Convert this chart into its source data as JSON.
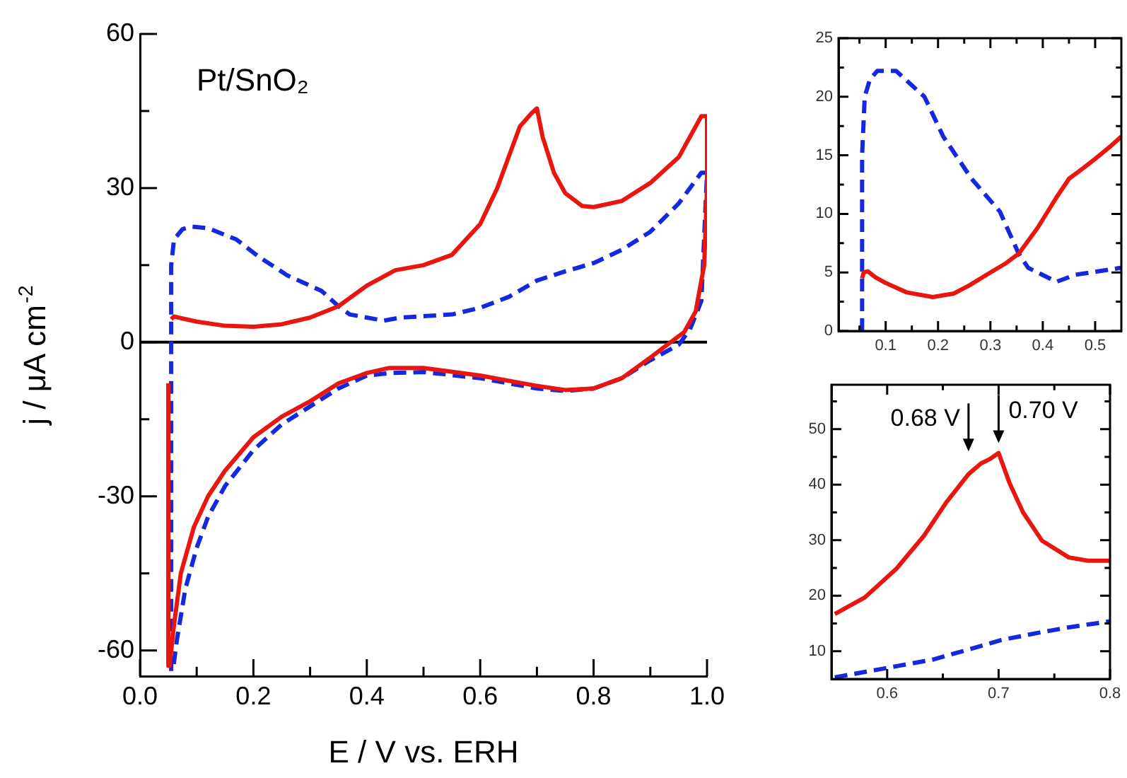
{
  "chart_data": [
    {
      "type": "line",
      "xlabel": "E / V vs. ERH",
      "ylabel": "j / μA cm$^{-2}$",
      "annotations": [
        "Pt/SnO₂"
      ],
      "marker": "none",
      "xlim": [
        0,
        1
      ],
      "xticks": [
        {
          "value": 0,
          "label": "0.0"
        },
        {
          "value": 0.1,
          "label": null
        },
        {
          "value": 0.2,
          "label": "0.2"
        },
        {
          "value": 0.3,
          "label": null
        },
        {
          "value": 0.4,
          "label": "0.4"
        },
        {
          "value": 0.5,
          "label": null
        },
        {
          "value": 0.6,
          "label": "0.6"
        },
        {
          "value": 0.7,
          "label": null
        },
        {
          "value": 0.8,
          "label": "0.8"
        },
        {
          "value": 0.9,
          "label": null
        },
        {
          "value": 1,
          "label": "1.0"
        }
      ],
      "ylim": [
        -65,
        60
      ],
      "yticks": [
        -60,
        {
          "value": -45,
          "label": null
        },
        -30,
        {
          "value": -15,
          "label": null
        },
        0,
        {
          "value": 15,
          "label": null
        },
        30,
        {
          "value": 45,
          "label": null
        },
        60
      ],
      "ref_lines": [
        {
          "axis": "y",
          "value": 0,
          "color": "#000000"
        }
      ],
      "series": [
        {
          "color": "#e8160f",
          "line_style": "solid",
          "x": [
            0.055,
            0.06,
            0.1,
            0.15,
            0.2,
            0.25,
            0.3,
            0.35,
            0.4,
            0.45,
            0.5,
            0.55,
            0.6,
            0.63,
            0.65,
            0.67,
            0.69,
            0.7,
            0.71,
            0.73,
            0.75,
            0.78,
            0.8,
            0.85,
            0.9,
            0.95,
            0.99,
            1.0,
            1.0,
            0.995,
            0.98,
            0.96,
            0.93,
            0.9,
            0.85,
            0.8,
            0.75,
            0.7,
            0.6,
            0.5,
            0.44,
            0.4,
            0.35,
            0.3,
            0.25,
            0.2,
            0.15,
            0.12,
            0.095,
            0.072,
            0.06,
            0.052,
            0.05
          ],
          "values": [
            4.5,
            5,
            4,
            3.2,
            3,
            3.5,
            4.8,
            7,
            11,
            14,
            15,
            17,
            23,
            30,
            36,
            42,
            44.5,
            45.5,
            40,
            33,
            29,
            26.5,
            26.3,
            27.5,
            31,
            36,
            44,
            44,
            30,
            15,
            6,
            2,
            -0.5,
            -3,
            -7,
            -9,
            -9.3,
            -8.5,
            -6.5,
            -5,
            -5,
            -6,
            -8,
            -11.5,
            -14.5,
            -18.5,
            -25,
            -30,
            -36,
            -45,
            -55,
            -63,
            -8
          ]
        },
        {
          "color": "#1428e0",
          "line_style": "dashed",
          "x": [
            0.055,
            0.055,
            0.06,
            0.075,
            0.09,
            0.12,
            0.17,
            0.21,
            0.26,
            0.32,
            0.35,
            0.37,
            0.43,
            0.46,
            0.55,
            0.6,
            0.65,
            0.7,
            0.75,
            0.8,
            0.85,
            0.9,
            0.95,
            0.99,
            1.0,
            0.99,
            0.97,
            0.95,
            0.9,
            0.85,
            0.8,
            0.75,
            0.7,
            0.6,
            0.5,
            0.44,
            0.4,
            0.35,
            0.3,
            0.25,
            0.2,
            0.15,
            0.12,
            0.1,
            0.08,
            0.065,
            0.058
          ],
          "values": [
            -64,
            15,
            20,
            22,
            22.5,
            22.2,
            20,
            16.6,
            13,
            10,
            7,
            5.4,
            4.2,
            4.8,
            5.4,
            6.7,
            8.8,
            12,
            13.8,
            15.4,
            18,
            21.5,
            27,
            33,
            33,
            8,
            2.5,
            -0.5,
            -3.5,
            -7,
            -9,
            -9.5,
            -9,
            -7,
            -5.8,
            -6,
            -6.5,
            -9,
            -12.5,
            -16,
            -21,
            -28,
            -34,
            -40,
            -48,
            -58,
            -64
          ]
        }
      ]
    },
    {
      "type": "line",
      "marker": "none",
      "xlim": [
        0.01,
        0.55
      ],
      "xticks": [
        {
          "value": 0.05,
          "label": null
        },
        0.1,
        {
          "value": 0.15,
          "label": null
        },
        0.2,
        {
          "value": 0.25,
          "label": null
        },
        0.3,
        {
          "value": 0.35,
          "label": null
        },
        0.4,
        {
          "value": 0.45,
          "label": null
        },
        0.5
      ],
      "ylim": [
        0,
        25
      ],
      "yticks": [
        0,
        {
          "value": 2.5,
          "label": null
        },
        5,
        {
          "value": 7.5,
          "label": null
        },
        10,
        {
          "value": 12.5,
          "label": null
        },
        15,
        {
          "value": 17.5,
          "label": null
        },
        20,
        {
          "value": 22.5,
          "label": null
        },
        25
      ],
      "series": [
        {
          "color": "#e8160f",
          "line_style": "solid",
          "x": [
            0.055,
            0.058,
            0.066,
            0.08,
            0.1,
            0.14,
            0.19,
            0.23,
            0.26,
            0.3,
            0.33,
            0.354,
            0.39,
            0.426,
            0.45,
            0.48,
            0.5,
            0.53,
            0.55
          ],
          "values": [
            4.5,
            5,
            5.1,
            4.6,
            4.1,
            3.3,
            2.9,
            3.2,
            3.9,
            5,
            5.8,
            6.6,
            8.8,
            11.4,
            13,
            14,
            14.7,
            15.8,
            16.6
          ]
        },
        {
          "color": "#1428e0",
          "line_style": "dashed",
          "x": [
            0.055,
            0.055,
            0.06,
            0.07,
            0.084,
            0.12,
            0.174,
            0.21,
            0.264,
            0.318,
            0.354,
            0.372,
            0.426,
            0.462,
            0.55
          ],
          "values": [
            0,
            15,
            20,
            21.5,
            22.2,
            22.2,
            20,
            16.6,
            13,
            10.2,
            6.6,
            5.4,
            4.2,
            4.8,
            5.4
          ]
        }
      ]
    },
    {
      "type": "line",
      "marker": "none",
      "annotations": [
        {
          "text": "0.68 V",
          "x": 0.673,
          "y": 41.9
        },
        {
          "text": "0.70 V",
          "x": 0.7,
          "y": 45.7
        }
      ],
      "xlim": [
        0.55,
        0.8
      ],
      "xticks": [
        0.6,
        {
          "value": 0.65,
          "label": null
        },
        0.7,
        {
          "value": 0.75,
          "label": null
        },
        0.8
      ],
      "ylim": [
        5,
        58
      ],
      "yticks": [
        10,
        {
          "value": 15,
          "label": null
        },
        20,
        {
          "value": 25,
          "label": null
        },
        30,
        {
          "value": 35,
          "label": null
        },
        40,
        {
          "value": 45,
          "label": null
        },
        50,
        {
          "value": 55,
          "label": null
        }
      ],
      "series": [
        {
          "color": "#e8160f",
          "line_style": "solid",
          "x": [
            0.553,
            0.58,
            0.608,
            0.633,
            0.653,
            0.673,
            0.684,
            0.692,
            0.7,
            0.71,
            0.722,
            0.739,
            0.763,
            0.78,
            0.8
          ],
          "values": [
            16.7,
            19.7,
            24.8,
            30.8,
            36.8,
            41.9,
            43.8,
            44.6,
            45.7,
            40.2,
            35,
            29.9,
            26.9,
            26.3,
            26.3
          ]
        },
        {
          "color": "#1428e0",
          "line_style": "dashed",
          "x": [
            0.553,
            0.592,
            0.641,
            0.673,
            0.702,
            0.735,
            0.763,
            0.8
          ],
          "values": [
            5.3,
            6.7,
            8.5,
            10.3,
            12,
            13.3,
            14.3,
            15.4
          ]
        }
      ]
    }
  ]
}
